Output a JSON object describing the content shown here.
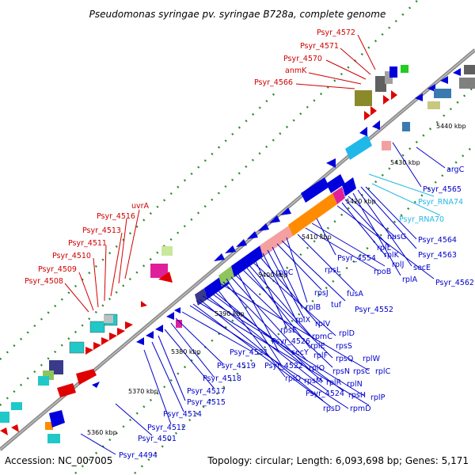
{
  "title": "Pseudomonas syringae pv. syringae B728a, complete genome",
  "accession": "Accession: NC_007005",
  "topology": "Topology: circular; Length: 6,093,698 bp; Genes: 5,171",
  "colors": {
    "backbone": "#8c8c8c",
    "forward_label": "#d00000",
    "reverse_label": "#0000cc",
    "rna_label": "#22b8e8",
    "tick_dots": "#2e8b2e",
    "rrna": "#f4a0a0",
    "trna": "#ff8c00"
  },
  "kbp_markers": [
    "5360 kbp",
    "5370 kbp",
    "5380 kbp",
    "5390 kbp",
    "5400 kbp",
    "5410 kbp",
    "5420 kbp",
    "5430 kbp",
    "5440 kbp"
  ],
  "red_labels": [
    "Psyr_4572",
    "Psyr_4571",
    "Psyr_4570",
    "anmK",
    "Psyr_4566",
    "uvrA",
    "Psyr_4516",
    "Psyr_4513",
    "Psyr_4511",
    "Psyr_4510",
    "Psyr_4509",
    "Psyr_4508"
  ],
  "blue_labels": [
    "argC",
    "Psyr_4565",
    "Psyr_4564",
    "nusG",
    "Psyr_4563",
    "rplL",
    "rplK",
    "rplJ",
    "secE",
    "rplA",
    "Psyr_4562",
    "Psyr_4554",
    "rpoB",
    "rpoC",
    "rpsL",
    "fusA",
    "rpsJ",
    "tuf",
    "Psyr_4552",
    "rplB",
    "rplX",
    "rplV",
    "rpsE",
    "rplD",
    "Psyr_4526",
    "rpmC",
    "rplE",
    "rpsS",
    "Psyr_4521",
    "secY",
    "rplF",
    "rpsQ",
    "rplW",
    "Psyr_4519",
    "Psyr_4522",
    "rplO",
    "rpsN",
    "rpsC",
    "rplC",
    "Psyr_4518",
    "rplQ",
    "rpsM",
    "rplR",
    "rplN",
    "Psyr_4524",
    "rpsH",
    "rplP",
    "Psyr_4517",
    "rpsD",
    "rpmD",
    "Psyr_4515",
    "Psyr_4514",
    "Psyr_4512",
    "Psyr_4501",
    "Psyr_4494"
  ],
  "cyan_labels": [
    "Psyr_RNA74",
    "Psyr_RNA70"
  ]
}
